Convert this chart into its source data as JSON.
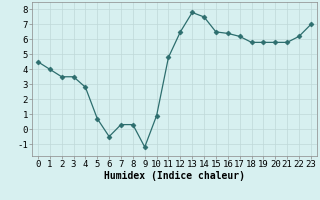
{
  "x": [
    0,
    1,
    2,
    3,
    4,
    5,
    6,
    7,
    8,
    9,
    10,
    11,
    12,
    13,
    14,
    15,
    16,
    17,
    18,
    19,
    20,
    21,
    22,
    23
  ],
  "y": [
    4.5,
    4.0,
    3.5,
    3.5,
    2.8,
    0.7,
    -0.5,
    0.3,
    0.3,
    -1.2,
    0.9,
    4.8,
    6.5,
    7.8,
    7.5,
    6.5,
    6.4,
    6.2,
    5.8,
    5.8,
    5.8,
    5.8,
    6.2,
    7.0
  ],
  "line_color": "#2d6e6e",
  "marker": "D",
  "marker_size": 2.5,
  "background_color": "#d7f0f0",
  "grid_color": "#c0d8d8",
  "xlabel": "Humidex (Indice chaleur)",
  "xlabel_fontsize": 7,
  "tick_fontsize": 6.5,
  "ylim": [
    -1.8,
    8.5
  ],
  "xlim": [
    -0.5,
    23.5
  ],
  "yticks": [
    -1,
    0,
    1,
    2,
    3,
    4,
    5,
    6,
    7,
    8
  ],
  "xticks": [
    0,
    1,
    2,
    3,
    4,
    5,
    6,
    7,
    8,
    9,
    10,
    11,
    12,
    13,
    14,
    15,
    16,
    17,
    18,
    19,
    20,
    21,
    22,
    23
  ]
}
